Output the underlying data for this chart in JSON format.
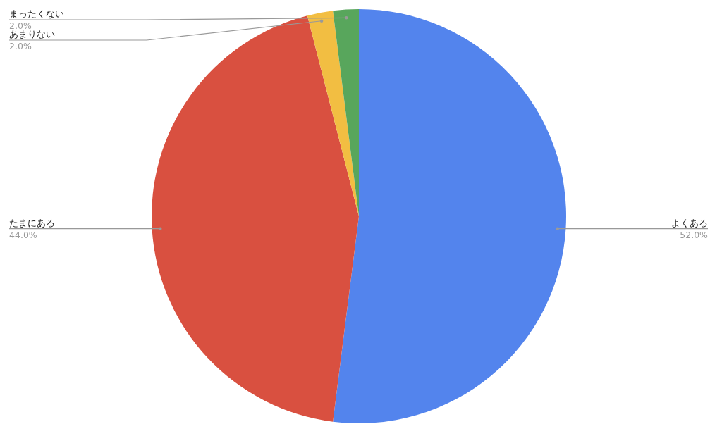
{
  "chart_data": {
    "type": "pie",
    "categories": [
      "よくある",
      "たまにある",
      "あまりない",
      "まったくない"
    ],
    "values": [
      52,
      44,
      2,
      2
    ],
    "value_labels": [
      "52.0%",
      "44.0%",
      "2.0%",
      "2.0%"
    ],
    "colors": [
      "#5384ed",
      "#d95040",
      "#f2be42",
      "#58a65c"
    ]
  }
}
